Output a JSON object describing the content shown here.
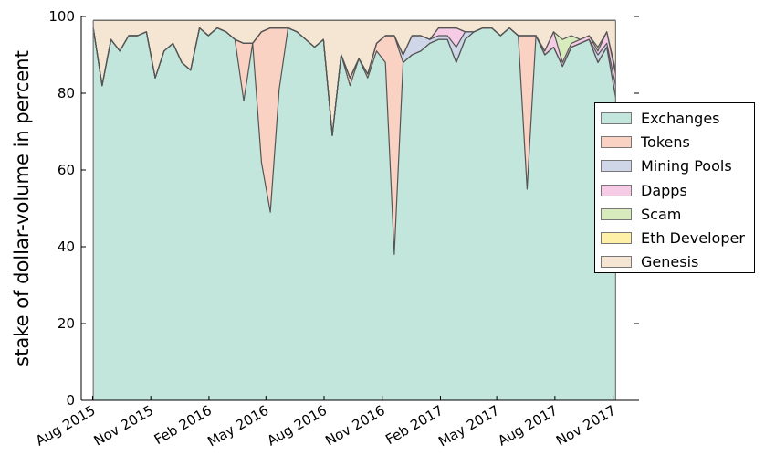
{
  "chart_data": {
    "type": "area",
    "stacked": true,
    "ylabel": "stake of dollar-volume in percent",
    "xlabel": "",
    "ylim": [
      0,
      100
    ],
    "yticks": [
      0,
      20,
      40,
      60,
      80,
      100
    ],
    "xlim": [
      "2015-07-14",
      "2017-12-12"
    ],
    "xticks": [
      {
        "date": "2015-08-01",
        "label": "Aug 2015"
      },
      {
        "date": "2015-11-01",
        "label": "Nov 2015"
      },
      {
        "date": "2016-02-01",
        "label": "Feb 2016"
      },
      {
        "date": "2016-05-01",
        "label": "May 2016"
      },
      {
        "date": "2016-08-01",
        "label": "Aug 2016"
      },
      {
        "date": "2016-11-01",
        "label": "Nov 2016"
      },
      {
        "date": "2017-02-01",
        "label": "Feb 2017"
      },
      {
        "date": "2017-05-01",
        "label": "May 2017"
      },
      {
        "date": "2017-08-01",
        "label": "Aug 2017"
      },
      {
        "date": "2017-11-01",
        "label": "Nov 2017"
      }
    ],
    "legend_position": "right",
    "x": [
      "2015-08-02",
      "2015-08-16",
      "2015-08-30",
      "2015-09-13",
      "2015-09-27",
      "2015-10-11",
      "2015-10-25",
      "2015-11-08",
      "2015-11-22",
      "2015-12-06",
      "2015-12-20",
      "2016-01-03",
      "2016-01-17",
      "2016-01-31",
      "2016-02-14",
      "2016-02-28",
      "2016-03-13",
      "2016-03-27",
      "2016-04-10",
      "2016-04-24",
      "2016-05-08",
      "2016-05-22",
      "2016-06-05",
      "2016-06-19",
      "2016-07-03",
      "2016-07-17",
      "2016-07-31",
      "2016-08-14",
      "2016-08-28",
      "2016-09-11",
      "2016-09-25",
      "2016-10-09",
      "2016-10-23",
      "2016-11-06",
      "2016-11-20",
      "2016-12-04",
      "2016-12-18",
      "2017-01-01",
      "2017-01-15",
      "2017-01-29",
      "2017-02-12",
      "2017-02-26",
      "2017-03-12",
      "2017-03-26",
      "2017-04-09",
      "2017-04-23",
      "2017-05-07",
      "2017-05-21",
      "2017-06-04",
      "2017-06-18",
      "2017-07-02",
      "2017-07-16",
      "2017-07-30",
      "2017-08-13",
      "2017-08-27",
      "2017-09-10",
      "2017-09-24",
      "2017-10-08",
      "2017-10-22",
      "2017-11-05"
    ],
    "series": [
      {
        "name": "Exchanges",
        "color": "#c2e6db",
        "values": [
          97,
          82,
          94,
          91,
          95,
          95,
          96,
          84,
          91,
          93,
          88,
          86,
          97,
          95,
          97,
          96,
          94,
          78,
          93,
          62,
          49,
          81,
          97,
          96,
          94,
          92,
          94,
          69,
          90,
          82,
          89,
          84,
          91,
          88,
          38,
          88,
          90,
          91,
          93,
          94,
          94,
          88,
          94,
          96,
          97,
          97,
          95,
          97,
          95,
          55,
          95,
          90,
          92,
          87,
          92,
          93,
          94,
          88,
          92,
          79
        ]
      },
      {
        "name": "Tokens",
        "color": "#f9d2c3",
        "values": [
          0,
          0,
          0,
          0,
          0,
          0,
          0,
          0,
          0,
          0,
          0,
          0,
          0,
          0,
          0,
          0,
          0,
          15,
          0,
          34,
          48,
          16,
          0,
          0,
          0,
          0,
          0,
          0,
          0,
          2,
          0,
          1,
          2,
          7,
          57,
          0,
          0,
          0,
          0,
          0,
          0,
          0,
          0,
          0,
          0,
          0,
          0,
          0,
          0,
          40,
          0,
          0,
          0,
          0,
          0,
          0,
          0,
          0,
          0,
          0
        ]
      },
      {
        "name": "Mining Pools",
        "color": "#cfd6e8",
        "values": [
          0,
          0,
          0,
          0,
          0,
          0,
          0,
          0,
          0,
          0,
          0,
          0,
          0,
          0,
          0,
          0,
          0,
          0,
          0,
          0,
          0,
          0,
          0,
          0,
          0,
          0,
          0,
          0,
          0,
          0,
          0,
          0,
          0,
          0,
          0,
          2,
          5,
          4,
          1,
          1,
          1,
          4,
          2,
          0,
          0,
          0,
          0,
          0,
          0,
          0,
          0,
          0,
          0,
          0,
          0,
          0,
          0,
          2,
          1,
          3
        ]
      },
      {
        "name": "Dapps",
        "color": "#f6cbe6",
        "values": [
          0,
          0,
          0,
          0,
          0,
          0,
          0,
          0,
          0,
          0,
          0,
          0,
          0,
          0,
          0,
          0,
          0,
          0,
          0,
          0,
          0,
          0,
          0,
          0,
          0,
          0,
          0,
          0,
          0,
          0,
          0,
          0,
          0,
          0,
          0,
          0,
          0,
          0,
          0,
          2,
          2,
          5,
          0,
          0,
          0,
          0,
          0,
          0,
          0,
          0,
          0,
          1,
          4,
          1,
          1,
          1,
          1,
          1,
          3,
          3
        ]
      },
      {
        "name": "Scam",
        "color": "#d8ebbd",
        "values": [
          0,
          0,
          0,
          0,
          0,
          0,
          0,
          0,
          0,
          0,
          0,
          0,
          0,
          0,
          0,
          0,
          0,
          0,
          0,
          0,
          0,
          0,
          0,
          0,
          0,
          0,
          0,
          0,
          0,
          0,
          0,
          0,
          0,
          0,
          0,
          0,
          0,
          0,
          0,
          0,
          0,
          0,
          0,
          0,
          0,
          0,
          0,
          0,
          0,
          0,
          0,
          0,
          0,
          6,
          2,
          0,
          0,
          1,
          0,
          1
        ]
      },
      {
        "name": "Eth Developer",
        "color": "#fff0a8",
        "values": [
          0,
          0,
          0,
          0,
          0,
          0,
          0,
          0,
          0,
          0,
          0,
          0,
          0,
          0,
          0,
          0,
          0,
          0,
          0,
          0,
          0,
          0,
          0,
          0,
          0,
          0,
          0,
          0,
          0,
          0,
          0,
          0,
          0,
          0,
          0,
          0,
          0,
          0,
          0,
          0,
          0,
          0,
          0,
          0,
          0,
          0,
          0,
          0,
          0,
          0,
          0,
          0,
          0,
          0,
          0,
          0,
          0,
          0,
          0,
          0
        ]
      },
      {
        "name": "Genesis",
        "color": "#f5e6d3",
        "values": [
          2,
          17,
          5,
          8,
          4,
          4,
          3,
          15,
          8,
          6,
          11,
          13,
          2,
          4,
          2,
          3,
          5,
          6,
          6,
          3,
          2,
          2,
          2,
          3,
          5,
          7,
          5,
          30,
          9,
          15,
          10,
          14,
          6,
          4,
          4,
          9,
          4,
          4,
          5,
          2,
          2,
          2,
          3,
          3,
          2,
          2,
          4,
          2,
          4,
          4,
          4,
          8,
          3,
          5,
          4,
          5,
          4,
          7,
          3,
          13
        ]
      }
    ]
  }
}
